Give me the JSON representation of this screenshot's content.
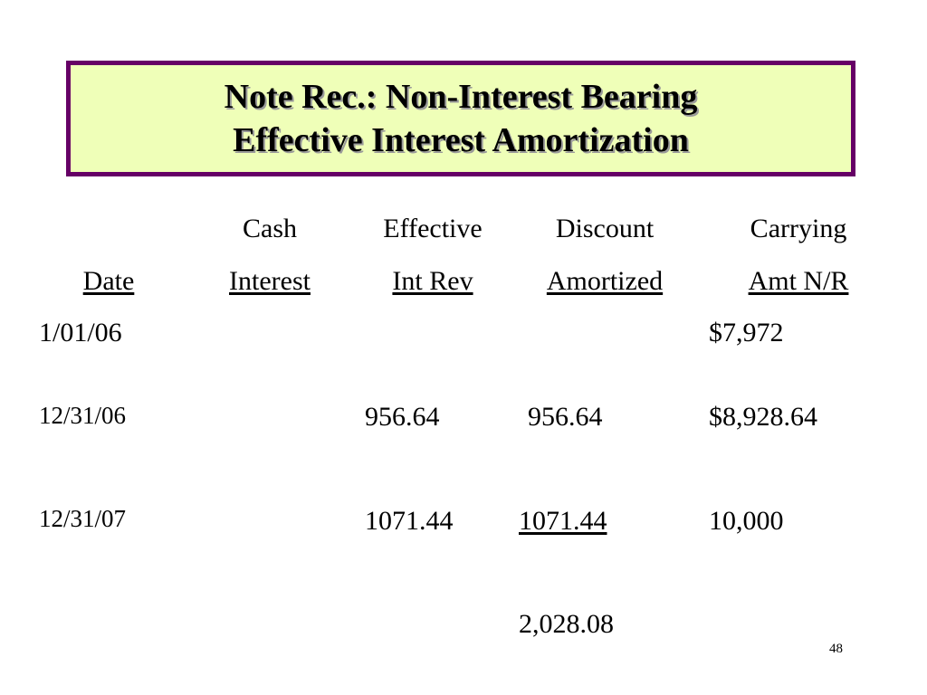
{
  "title": {
    "line1": "Note Rec.: Non-Interest Bearing",
    "line2": "Effective Interest Amortization"
  },
  "table": {
    "headers": {
      "date": {
        "top": "",
        "bottom": "Date"
      },
      "cash_interest": {
        "top": "Cash",
        "bottom": "Interest"
      },
      "effective_int_rev": {
        "top": "Effective",
        "bottom": "Int Rev"
      },
      "discount_amortized": {
        "top": "Discount",
        "bottom": "Amortized"
      },
      "carrying_amt": {
        "top": "Carrying",
        "bottom": "Amt N/R"
      }
    },
    "rows": [
      {
        "date": "1/01/06",
        "cash_interest": "",
        "effective_int_rev": "",
        "discount_amortized": "",
        "carrying_amt": "$7,972"
      },
      {
        "date": "12/31/06",
        "cash_interest": "",
        "effective_int_rev": "956.64",
        "discount_amortized": "956.64",
        "carrying_amt": "$8,928.64"
      },
      {
        "date": "12/31/07",
        "cash_interest": "",
        "effective_int_rev": "1071.44",
        "discount_amortized": "1071.44",
        "carrying_amt": "10,000"
      }
    ],
    "total_discount_amortized": "2,028.08"
  },
  "slide_number": "48",
  "colors": {
    "title_border": "#660066",
    "title_background": "#efffb8"
  }
}
